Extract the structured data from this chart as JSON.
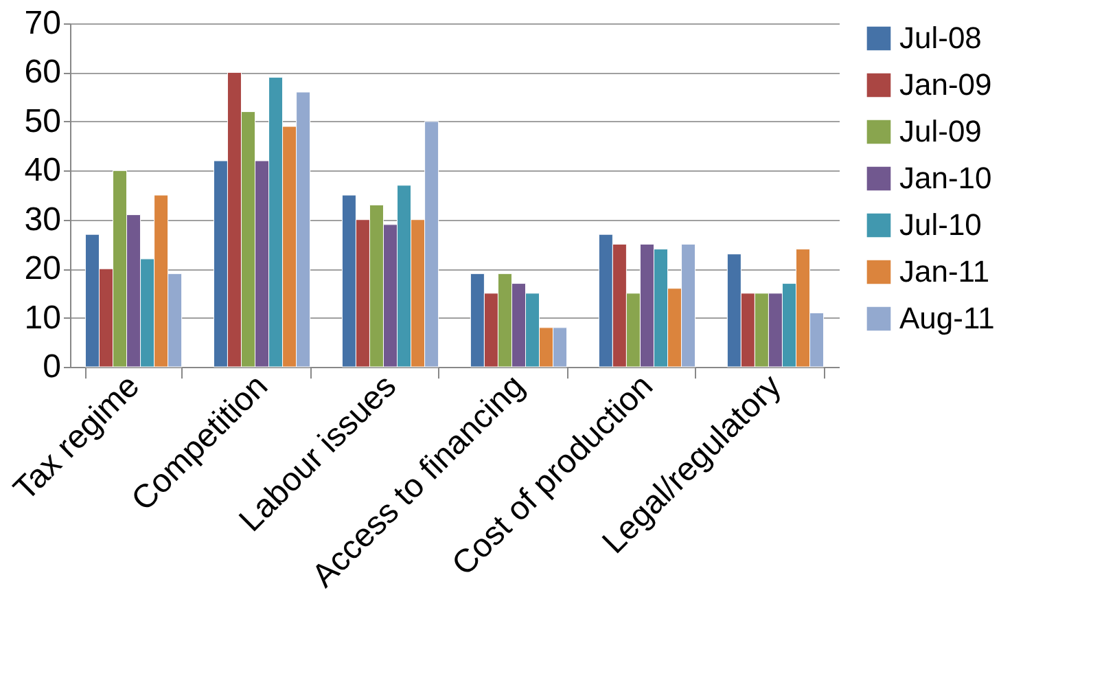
{
  "chart_data": {
    "type": "bar",
    "categories": [
      "Tax regime",
      "Competition",
      "Labour issues",
      "Access to financing",
      "Cost of production",
      "Legal/regulatory"
    ],
    "series": [
      {
        "name": "Jul-08",
        "color": "#4572a7",
        "values": [
          27,
          42,
          35,
          19,
          27,
          23
        ]
      },
      {
        "name": "Jan-09",
        "color": "#aa4643",
        "values": [
          20,
          60,
          30,
          15,
          25,
          15
        ]
      },
      {
        "name": "Jul-09",
        "color": "#89a54e",
        "values": [
          40,
          52,
          33,
          19,
          15,
          15
        ]
      },
      {
        "name": "Jan-10",
        "color": "#71588f",
        "values": [
          31,
          42,
          29,
          17,
          25,
          15
        ]
      },
      {
        "name": "Jul-10",
        "color": "#4198af",
        "values": [
          22,
          59,
          37,
          15,
          24,
          17
        ]
      },
      {
        "name": "Jan-11",
        "color": "#db843d",
        "values": [
          35,
          49,
          30,
          8,
          16,
          24
        ]
      },
      {
        "name": "Aug-11",
        "color": "#93a9cf",
        "values": [
          19,
          56,
          50,
          8,
          25,
          11
        ]
      }
    ],
    "ylim": [
      0,
      70
    ],
    "yticks": [
      0,
      10,
      20,
      30,
      40,
      50,
      60,
      70
    ],
    "grid": "y",
    "legend": "right"
  }
}
